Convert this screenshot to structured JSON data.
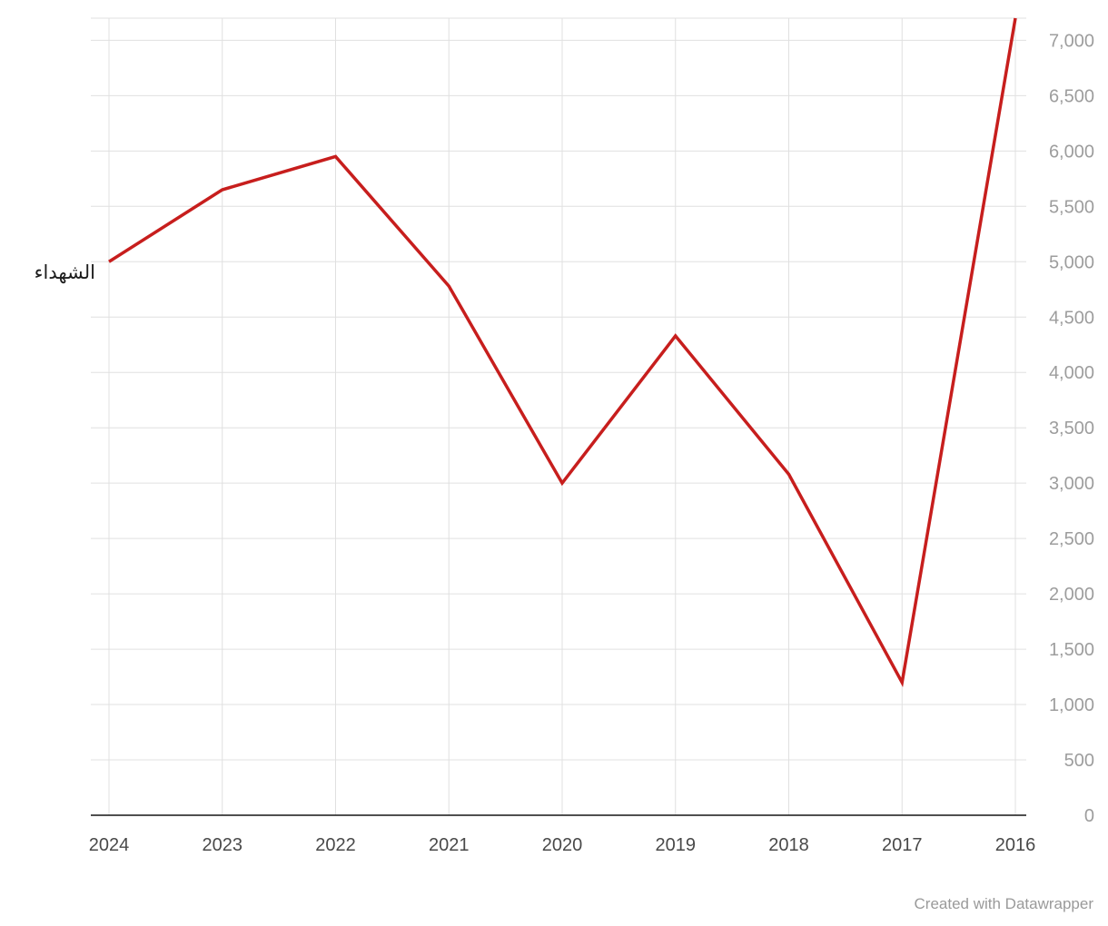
{
  "chart_data": {
    "type": "line",
    "title": "",
    "xlabel": "",
    "ylabel": "",
    "series_label": "الشهداء",
    "categories": [
      "2024",
      "2023",
      "2022",
      "2021",
      "2020",
      "2019",
      "2018",
      "2017",
      "2016"
    ],
    "values": [
      5000,
      5650,
      5950,
      4780,
      3000,
      4330,
      3080,
      1200,
      7200
    ],
    "y_ticks": [
      0,
      500,
      1000,
      1500,
      2000,
      2500,
      3000,
      3500,
      4000,
      4500,
      5000,
      5500,
      6000,
      6500,
      7000
    ],
    "ylim": [
      0,
      7200
    ],
    "line_color": "#c71e1d",
    "grid": true,
    "y_axis_position": "right",
    "x_axis_order": "2024 on left descending to 2016 on right"
  },
  "footer": {
    "credit": "Created with Datawrapper"
  }
}
